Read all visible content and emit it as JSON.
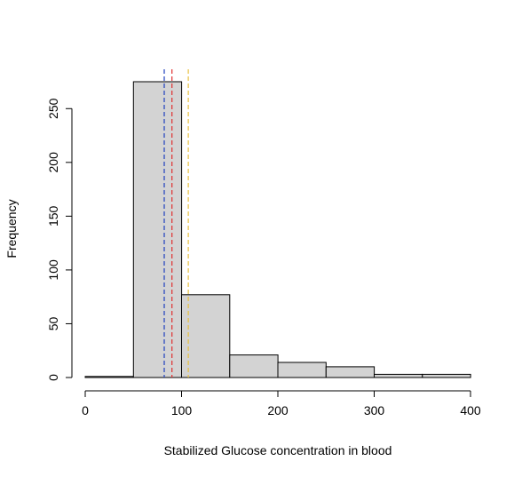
{
  "chart_data": {
    "type": "bar",
    "chart_subtype": "histogram",
    "title": "",
    "xlabel": "Stabilized Glucose concentration in blood",
    "ylabel": "Frequency",
    "bins": [
      {
        "from": 0,
        "to": 50,
        "count": 1
      },
      {
        "from": 50,
        "to": 100,
        "count": 275
      },
      {
        "from": 100,
        "to": 150,
        "count": 77
      },
      {
        "from": 150,
        "to": 200,
        "count": 21
      },
      {
        "from": 200,
        "to": 250,
        "count": 14
      },
      {
        "from": 250,
        "to": 300,
        "count": 10
      },
      {
        "from": 300,
        "to": 350,
        "count": 3
      },
      {
        "from": 350,
        "to": 400,
        "count": 3
      }
    ],
    "xlim": [
      0,
      400
    ],
    "ylim": [
      0,
      275
    ],
    "x_ticks": [
      0,
      100,
      200,
      300,
      400
    ],
    "x_tick_labels": [
      "0",
      "100",
      "200",
      "300",
      "400"
    ],
    "y_ticks": [
      0,
      50,
      100,
      150,
      200,
      250
    ],
    "y_tick_labels": [
      "0",
      "50",
      "100",
      "150",
      "200",
      "250"
    ],
    "reference_lines": [
      {
        "x": 82,
        "color": "#1f3fbf"
      },
      {
        "x": 90,
        "color": "#e03030"
      },
      {
        "x": 107,
        "color": "#e8c040"
      }
    ],
    "grid": false,
    "legend": "none",
    "bar_color": "#d3d3d3",
    "bar_edge_color": "#000000"
  }
}
